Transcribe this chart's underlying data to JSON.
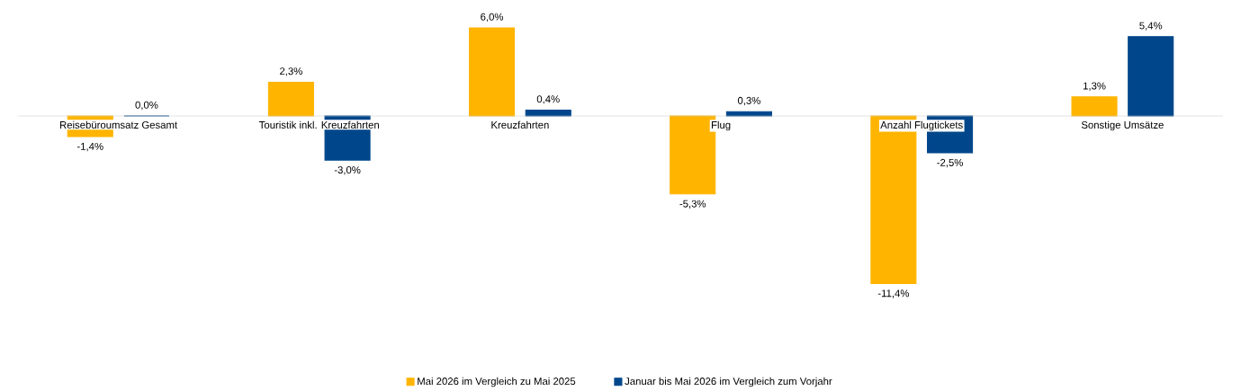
{
  "chart_data": {
    "type": "bar",
    "categories": [
      "Reisebüroumsatz Gesamt",
      "Touristik inkl. Kreuzfahrten",
      "Kreuzfahrten",
      "Flug",
      "Anzahl Flugtickets",
      "Sonstige Umsätze"
    ],
    "series": [
      {
        "name": "Mai 2026 im Vergleich zu Mai 2025",
        "color": "#ffb500",
        "values": [
          -1.4,
          2.3,
          6.0,
          -5.3,
          -11.4,
          1.3
        ],
        "value_labels": [
          "-1,4%",
          "2,3%",
          "6,0%",
          "-5,3%",
          "-11,4%",
          "1,3%"
        ]
      },
      {
        "name": "Januar bis Mai 2026 im Vergleich zum Vorjahr",
        "color": "#00468b",
        "values": [
          0.0,
          -3.0,
          0.4,
          0.3,
          -2.5,
          5.4
        ],
        "value_labels": [
          "0,0%",
          "-3,0%",
          "0,4%",
          "0,3%",
          "-2,5%",
          "5,4%"
        ]
      }
    ],
    "legend": "bottom",
    "grid": false
  }
}
